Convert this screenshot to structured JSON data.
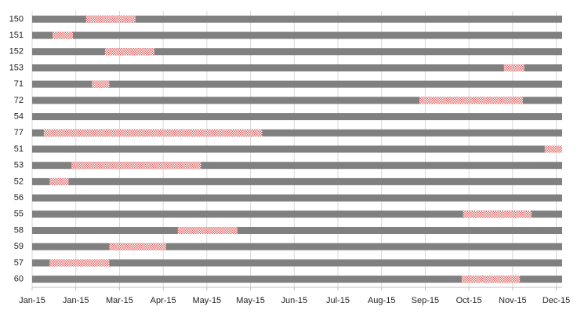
{
  "chart_data": {
    "type": "gantt",
    "categories": [
      "150",
      "151",
      "152",
      "153",
      "71",
      "72",
      "54",
      "77",
      "51",
      "53",
      "52",
      "56",
      "55",
      "58",
      "59",
      "57",
      "60"
    ],
    "starts": [
      42042,
      42019,
      42055,
      42329,
      42046,
      42271,
      null,
      42013,
      42357,
      42032,
      42017,
      null,
      42301,
      42105,
      42058,
      42017,
      42300
    ],
    "ends": [
      42076,
      42033,
      42089,
      42343,
      42058,
      42342,
      null,
      42163,
      42369,
      42121,
      42030,
      null,
      42348,
      42146,
      42097,
      42058,
      42340
    ],
    "color": "#e06060",
    "background_color": "#808080",
    "xlim": [
      42005,
      42369
    ],
    "xticks": [
      {
        "value": 42005,
        "label": "Jan-15"
      },
      {
        "value": 42035,
        "label": "Jan-15"
      },
      {
        "value": 42065,
        "label": "Mar-15"
      },
      {
        "value": 42095,
        "label": "Apr-15"
      },
      {
        "value": 42125,
        "label": "May-15"
      },
      {
        "value": 42155,
        "label": "May-15"
      },
      {
        "value": 42185,
        "label": "Jun-15"
      },
      {
        "value": 42215,
        "label": "Jul-15"
      },
      {
        "value": 42245,
        "label": "Aug-15"
      },
      {
        "value": 42275,
        "label": "Sep-15"
      },
      {
        "value": 42305,
        "label": "Oct-15"
      },
      {
        "value": 42335,
        "label": "Nov-15"
      },
      {
        "value": 42365,
        "label": "Dec-15"
      }
    ],
    "grid": true
  }
}
